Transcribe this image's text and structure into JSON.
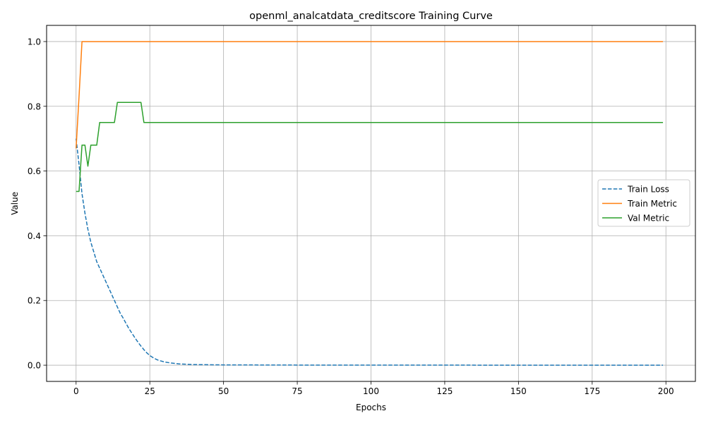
{
  "chart_data": {
    "type": "line",
    "title": "openml_analcatdata_creditscore Training Curve",
    "xlabel": "Epochs",
    "ylabel": "Value",
    "xlim": [
      -10,
      210
    ],
    "ylim": [
      -0.05,
      1.05
    ],
    "xticks": [
      0,
      25,
      50,
      75,
      100,
      125,
      150,
      175,
      200
    ],
    "yticks": [
      0.0,
      0.2,
      0.4,
      0.6,
      0.8,
      1.0
    ],
    "xtick_labels": [
      "0",
      "25",
      "50",
      "75",
      "100",
      "125",
      "150",
      "175",
      "200"
    ],
    "ytick_labels": [
      "0.0",
      "0.2",
      "0.4",
      "0.6",
      "0.8",
      "1.0"
    ],
    "grid": true,
    "legend_position": "center-right",
    "series": [
      {
        "name": "Train Loss",
        "color": "#1f77b4",
        "style": "dashed",
        "points": [
          [
            0,
            0.7
          ],
          [
            1,
            0.62
          ],
          [
            2,
            0.53
          ],
          [
            3,
            0.47
          ],
          [
            4,
            0.42
          ],
          [
            5,
            0.38
          ],
          [
            6,
            0.35
          ],
          [
            7,
            0.32
          ],
          [
            8,
            0.3
          ],
          [
            9,
            0.28
          ],
          [
            10,
            0.26
          ],
          [
            11,
            0.24
          ],
          [
            12,
            0.22
          ],
          [
            13,
            0.2
          ],
          [
            14,
            0.18
          ],
          [
            15,
            0.16
          ],
          [
            16,
            0.145
          ],
          [
            17,
            0.128
          ],
          [
            18,
            0.112
          ],
          [
            19,
            0.098
          ],
          [
            20,
            0.084
          ],
          [
            21,
            0.071
          ],
          [
            22,
            0.059
          ],
          [
            23,
            0.048
          ],
          [
            24,
            0.038
          ],
          [
            25,
            0.03
          ],
          [
            26,
            0.024
          ],
          [
            27,
            0.019
          ],
          [
            28,
            0.015
          ],
          [
            30,
            0.01
          ],
          [
            32,
            0.007
          ],
          [
            35,
            0.004
          ],
          [
            40,
            0.002
          ],
          [
            50,
            0.001
          ],
          [
            75,
            0.0005
          ],
          [
            100,
            0.0003
          ],
          [
            150,
            0.0002
          ],
          [
            199,
            0.0001
          ]
        ]
      },
      {
        "name": "Train Metric",
        "color": "#ff7f0e",
        "style": "solid",
        "points": [
          [
            0,
            0.67
          ],
          [
            1,
            0.83
          ],
          [
            2,
            1.0
          ],
          [
            199,
            1.0
          ]
        ]
      },
      {
        "name": "Val Metric",
        "color": "#2ca02c",
        "style": "solid",
        "points": [
          [
            0,
            0.537
          ],
          [
            1,
            0.537
          ],
          [
            2,
            0.68
          ],
          [
            3,
            0.68
          ],
          [
            4,
            0.615
          ],
          [
            5,
            0.68
          ],
          [
            6,
            0.68
          ],
          [
            7,
            0.68
          ],
          [
            8,
            0.75
          ],
          [
            9,
            0.75
          ],
          [
            10,
            0.75
          ],
          [
            11,
            0.75
          ],
          [
            12,
            0.75
          ],
          [
            13,
            0.75
          ],
          [
            14,
            0.812
          ],
          [
            15,
            0.812
          ],
          [
            16,
            0.812
          ],
          [
            17,
            0.812
          ],
          [
            18,
            0.812
          ],
          [
            19,
            0.812
          ],
          [
            20,
            0.812
          ],
          [
            21,
            0.812
          ],
          [
            22,
            0.812
          ],
          [
            23,
            0.75
          ],
          [
            199,
            0.75
          ]
        ]
      }
    ]
  }
}
